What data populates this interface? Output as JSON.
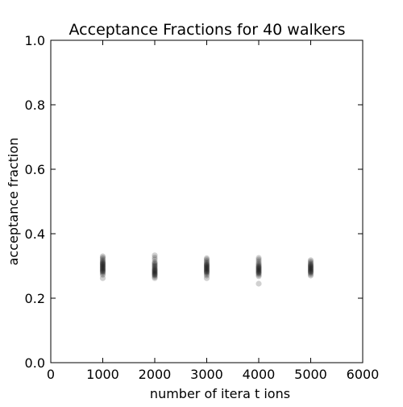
{
  "chart_data": {
    "type": "scatter",
    "title": "Acceptance Fractions for 40 walkers",
    "xlabel": "number of itera      t ions",
    "ylabel": "acceptance fraction",
    "xlim": [
      0,
      6000
    ],
    "ylim": [
      0.0,
      1.0
    ],
    "x_ticks": [
      "0",
      "1000",
      "2000",
      "3000",
      "4000",
      "5000",
      "6000"
    ],
    "y_ticks": [
      "0.0",
      "0.2",
      "0.4",
      "0.6",
      "0.8",
      "1.0"
    ],
    "grid": false,
    "marker_color": "#000000",
    "series": [
      {
        "points": [
          {
            "x": 1000,
            "y": [
              0.262,
              0.272,
              0.276,
              0.28,
              0.282,
              0.284,
              0.286,
              0.288,
              0.29,
              0.292,
              0.294,
              0.296,
              0.298,
              0.3,
              0.302,
              0.304,
              0.306,
              0.308,
              0.31,
              0.312,
              0.315,
              0.318,
              0.322,
              0.326,
              0.33
            ]
          },
          {
            "x": 2000,
            "y": [
              0.262,
              0.266,
              0.27,
              0.272,
              0.274,
              0.276,
              0.278,
              0.28,
              0.282,
              0.284,
              0.286,
              0.288,
              0.29,
              0.292,
              0.295,
              0.298,
              0.3,
              0.303,
              0.306,
              0.309,
              0.312,
              0.32,
              0.326,
              0.333
            ]
          },
          {
            "x": 3000,
            "y": [
              0.262,
              0.27,
              0.274,
              0.278,
              0.28,
              0.282,
              0.284,
              0.286,
              0.288,
              0.29,
              0.292,
              0.294,
              0.296,
              0.298,
              0.3,
              0.302,
              0.304,
              0.306,
              0.309,
              0.312,
              0.316,
              0.32,
              0.324
            ]
          },
          {
            "x": 4000,
            "y": [
              0.245,
              0.268,
              0.272,
              0.276,
              0.278,
              0.28,
              0.282,
              0.284,
              0.286,
              0.288,
              0.29,
              0.292,
              0.294,
              0.296,
              0.298,
              0.3,
              0.303,
              0.306,
              0.31,
              0.315,
              0.32,
              0.325
            ]
          },
          {
            "x": 5000,
            "y": [
              0.27,
              0.274,
              0.278,
              0.28,
              0.282,
              0.284,
              0.286,
              0.288,
              0.29,
              0.292,
              0.294,
              0.296,
              0.298,
              0.3,
              0.302,
              0.304,
              0.307,
              0.31,
              0.314,
              0.318
            ]
          }
        ]
      }
    ]
  }
}
